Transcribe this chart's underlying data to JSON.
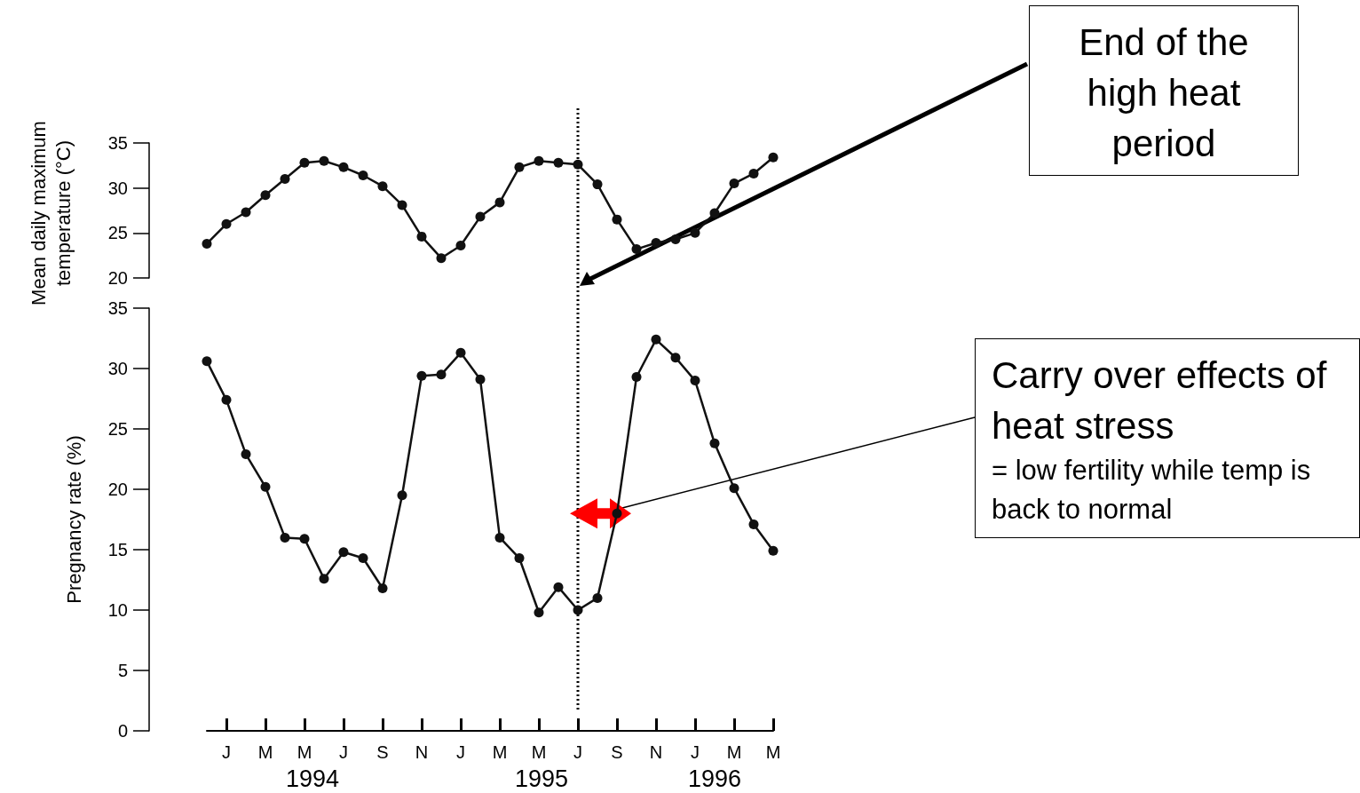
{
  "chart_data": [
    {
      "type": "line",
      "ylabel": "Mean daily maximum temperature (°C)",
      "annotations": [
        "End of the high heat period"
      ],
      "categories": [
        null,
        null,
        null,
        null,
        null,
        null,
        null,
        null,
        null,
        null,
        null,
        null,
        null,
        null,
        null,
        null,
        null,
        null,
        null,
        null,
        null,
        null,
        null,
        null,
        null,
        null,
        null,
        null,
        null,
        null
      ],
      "series": [
        {
          "color": "#111111",
          "values": [
            23.8,
            26.0,
            27.3,
            29.2,
            31.0,
            32.8,
            33.0,
            32.3,
            31.4,
            30.2,
            28.1,
            24.6,
            22.2,
            23.6,
            26.8,
            28.4,
            32.3,
            33.0,
            32.8,
            32.6,
            30.4,
            26.5,
            23.2,
            23.9,
            24.3,
            25.0,
            27.2,
            30.5,
            31.6,
            33.4
          ]
        }
      ],
      "ylim": [
        20,
        35
      ],
      "yticks": [
        20,
        25,
        30,
        35
      ],
      "tick_labels": "y",
      "marker": "circle"
    },
    {
      "type": "line",
      "ylabel": "Pregnancy rate (%)",
      "annotations": [
        "Carry over effects of heat stress",
        "= low fertility while temp is back to normal",
        "1994",
        "1995",
        "1996"
      ],
      "categories": [
        null,
        "J",
        null,
        "M",
        null,
        "M",
        null,
        "J",
        null,
        "S",
        null,
        "N",
        null,
        "J",
        null,
        "M",
        null,
        "M",
        null,
        "J",
        null,
        "S",
        null,
        "N",
        null,
        "J",
        null,
        "M",
        null,
        "M"
      ],
      "series": [
        {
          "color": "#111111",
          "values": [
            30.6,
            27.4,
            22.9,
            20.2,
            16.0,
            15.9,
            12.6,
            14.8,
            14.3,
            11.8,
            19.5,
            29.4,
            29.5,
            31.3,
            29.1,
            16.0,
            14.3,
            9.8,
            11.9,
            10.0,
            11.0,
            18.0,
            29.3,
            32.4,
            30.9,
            29.0,
            23.8,
            20.1,
            17.1,
            14.9
          ]
        }
      ],
      "ylim": [
        0,
        35
      ],
      "yticks": [
        0,
        5,
        10,
        15,
        20,
        25,
        30,
        35
      ],
      "marker": "circle"
    }
  ]
}
